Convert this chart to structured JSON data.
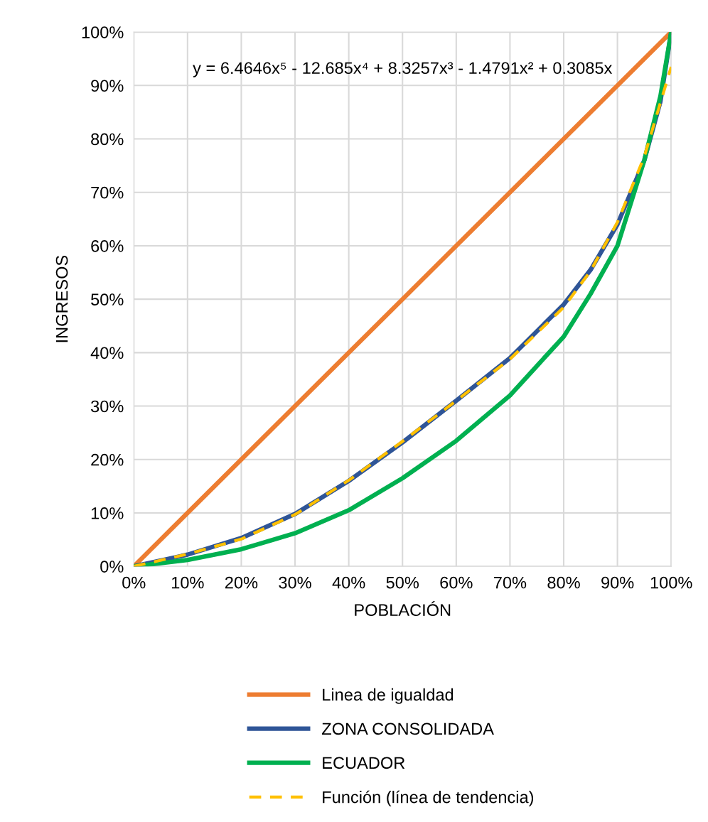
{
  "chart_data": {
    "type": "line",
    "xlabel": "POBLACIÓN",
    "ylabel": "INGRESOS",
    "xlim": [
      0,
      1
    ],
    "ylim": [
      0,
      1
    ],
    "xticks": [
      {
        "value": 0,
        "label": "0%"
      },
      {
        "value": 0.1,
        "label": "10%"
      },
      {
        "value": 0.2,
        "label": "20%"
      },
      {
        "value": 0.3,
        "label": "30%"
      },
      {
        "value": 0.4,
        "label": "40%"
      },
      {
        "value": 0.5,
        "label": "50%"
      },
      {
        "value": 0.6,
        "label": "60%"
      },
      {
        "value": 0.7,
        "label": "70%"
      },
      {
        "value": 0.8,
        "label": "80%"
      },
      {
        "value": 0.9,
        "label": "90%"
      },
      {
        "value": 1,
        "label": "100%"
      }
    ],
    "yticks": [
      {
        "value": 0,
        "label": "0%"
      },
      {
        "value": 0.1,
        "label": "10%"
      },
      {
        "value": 0.2,
        "label": "20%"
      },
      {
        "value": 0.3,
        "label": "30%"
      },
      {
        "value": 0.4,
        "label": "40%"
      },
      {
        "value": 0.5,
        "label": "50%"
      },
      {
        "value": 0.6,
        "label": "60%"
      },
      {
        "value": 0.7,
        "label": "70%"
      },
      {
        "value": 0.8,
        "label": "80%"
      },
      {
        "value": 0.9,
        "label": "90%"
      },
      {
        "value": 1,
        "label": "100%"
      }
    ],
    "grid": true,
    "legend": "bottom",
    "marker": "none",
    "annotations": [
      "y = 6.4646x⁵ - 12.685x⁴ + 8.3257x³ - 1.4791x² + 0.3085x"
    ],
    "series": [
      {
        "name": "Linea de igualdad",
        "color": "#ed7d31",
        "x": [
          0,
          1
        ],
        "values": [
          0,
          1
        ]
      },
      {
        "name": "ZONA CONSOLIDADA",
        "color": "#2f5597",
        "x": [
          0,
          0.1,
          0.2,
          0.3,
          0.4,
          0.5,
          0.6,
          0.7,
          0.8,
          0.85,
          0.9,
          0.95,
          0.98,
          1
        ],
        "values": [
          0,
          0.022,
          0.053,
          0.098,
          0.16,
          0.232,
          0.31,
          0.39,
          0.49,
          0.555,
          0.64,
          0.76,
          0.87,
          1
        ]
      },
      {
        "name": "ECUADOR",
        "color": "#00b050",
        "x": [
          0,
          0.1,
          0.2,
          0.3,
          0.4,
          0.5,
          0.6,
          0.7,
          0.8,
          0.85,
          0.9,
          0.95,
          0.98,
          1
        ],
        "values": [
          0,
          0.012,
          0.032,
          0.062,
          0.105,
          0.165,
          0.235,
          0.32,
          0.43,
          0.51,
          0.6,
          0.76,
          0.88,
          1
        ]
      },
      {
        "name": "Función (línea de tendencia)",
        "color": "#ffc000",
        "line_style": "dashed",
        "x": [
          0,
          0.1,
          0.2,
          0.3,
          0.4,
          0.5,
          0.6,
          0.7,
          0.8,
          0.85,
          0.9,
          0.95,
          1
        ],
        "values": [
          0,
          0.023,
          0.051,
          0.097,
          0.161,
          0.234,
          0.31,
          0.388,
          0.485,
          0.553,
          0.644,
          0.767,
          0.935
        ]
      }
    ]
  }
}
